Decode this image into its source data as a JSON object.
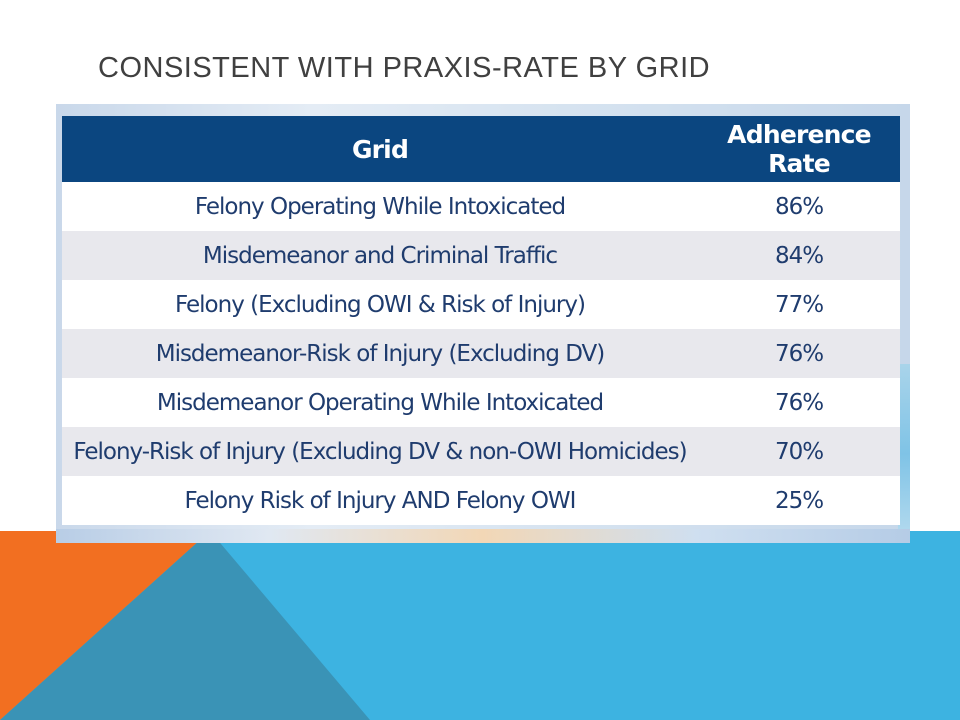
{
  "slide": {
    "title": "CONSISTENT WITH PRAXIS-RATE BY GRID"
  },
  "table": {
    "headers": {
      "grid": "Grid",
      "rate": "Adherence Rate"
    },
    "rows": [
      {
        "grid": "Felony Operating While Intoxicated",
        "rate": "86%"
      },
      {
        "grid": "Misdemeanor and Criminal Traffic",
        "rate": "84%"
      },
      {
        "grid": "Felony (Excluding OWI & Risk of Injury)",
        "rate": "77%"
      },
      {
        "grid": "Misdemeanor-Risk of Injury (Excluding DV)",
        "rate": "76%"
      },
      {
        "grid": "Misdemeanor Operating While Intoxicated",
        "rate": "76%"
      },
      {
        "grid": "Felony-Risk of Injury (Excluding DV & non-OWI Homicides)",
        "rate": "70%"
      },
      {
        "grid": "Felony Risk of Injury AND Felony OWI",
        "rate": "25%"
      }
    ]
  },
  "colors": {
    "header_bg": "#0b4680",
    "cell_text": "#1f3c6e",
    "band_row": "#e8e8ed",
    "accent_orange": "#f26f21",
    "accent_teal": "#3a93b6",
    "accent_blue": "#3db3e1"
  }
}
